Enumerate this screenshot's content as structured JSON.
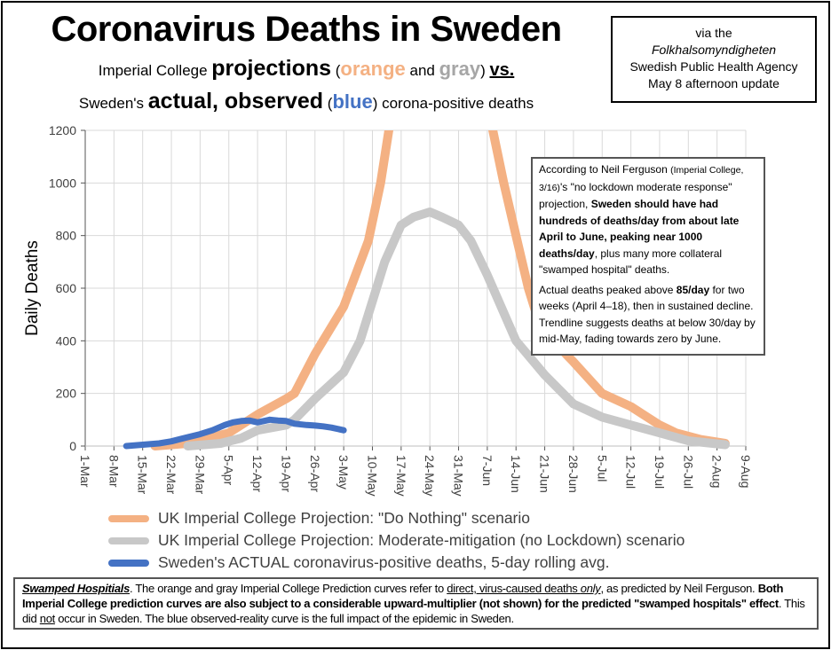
{
  "header": {
    "title": "Coronavirus Deaths in Sweden",
    "sub1_a": "Imperial College ",
    "sub1_b": "projections",
    "sub1_c": " (",
    "sub1_orange": "orange",
    "sub1_and": " and ",
    "sub1_gray": "gray",
    "sub1_d": ") ",
    "sub1_vs": "vs.",
    "sub2_a": "Sweden's ",
    "sub2_b": "actual, observed",
    "sub2_c": " (",
    "sub2_blue": "blue",
    "sub2_d": ") corona-positive deaths"
  },
  "source_box": {
    "line1": "via the",
    "line2": "Folkhalsomyndigheten",
    "line3": "Swedish Public Health Agency",
    "line4": "May 8 afternoon update"
  },
  "annotation": {
    "p1_a": "According to Neil Ferguson ",
    "p1_b": "(Imperial College, 3/16)",
    "p1_c": "'s \"no lockdown moderate response\" projection, ",
    "p1_bold": "Sweden should have had hundreds of deaths/day from about late April to June, peaking near 1000 deaths/day",
    "p1_d": ", plus many more collateral \"swamped hospital\" deaths.",
    "p2_a": "Actual deaths peaked above ",
    "p2_bold": "85/day",
    "p2_b": " for two weeks (April 4–18), then in sustained decline. Trendline suggests deaths at below 30/day by mid-May, fading towards zero by June."
  },
  "chart_data": {
    "type": "line",
    "title": "",
    "xlabel": "",
    "ylabel": "Daily Deaths",
    "ylim": [
      0,
      1200
    ],
    "yticks": [
      "0",
      "200",
      "400",
      "600",
      "800",
      "1000",
      "1200"
    ],
    "xticks": [
      "1-Mar",
      "8-Mar",
      "15-Mar",
      "22-Mar",
      "29-Mar",
      "5-Apr",
      "12-Apr",
      "19-Apr",
      "26-Apr",
      "3-May",
      "10-May",
      "17-May",
      "24-May",
      "31-May",
      "7-Jun",
      "14-Jun",
      "21-Jun",
      "28-Jun",
      "5-Jul",
      "12-Jul",
      "19-Jul",
      "26-Jul",
      "2-Aug",
      "9-Aug"
    ],
    "grid": true,
    "legend_position": "bottom",
    "series": [
      {
        "name": "UK Imperial College Projection: \"Do Nothing\" scenario",
        "color": "#f4b183",
        "x": [
          "18-Mar",
          "26-Mar",
          "5-Apr",
          "12-Apr",
          "19-Apr",
          "21-Apr",
          "26-Apr",
          "3-May",
          "9-May",
          "12-May",
          "15-May",
          "19-May",
          "7-Jun",
          "11-Jun",
          "14-Jun",
          "17-Jun",
          "20-Jun",
          "28-Jun",
          "5-Jul",
          "12-Jul",
          "16-Jul",
          "19-Jul",
          "23-Jul",
          "29-Jul",
          "4-Aug"
        ],
        "y": [
          0,
          10,
          50,
          120,
          180,
          200,
          350,
          530,
          780,
          1000,
          1300,
          2000,
          1300,
          1000,
          800,
          600,
          450,
          320,
          200,
          150,
          110,
          80,
          50,
          25,
          10
        ]
      },
      {
        "name": "UK Imperial College Projection: Moderate-mitigation (no Lockdown) scenario",
        "color": "#c8c8c8",
        "x": [
          "26-Mar",
          "3-Apr",
          "8-Apr",
          "12-Apr",
          "19-Apr",
          "21-Apr",
          "26-Apr",
          "3-May",
          "7-May",
          "10-May",
          "13-May",
          "17-May",
          "20-May",
          "24-May",
          "27-May",
          "31-May",
          "3-Jun",
          "7-Jun",
          "14-Jun",
          "21-Jun",
          "28-Jun",
          "5-Jul",
          "12-Jul",
          "19-Jul",
          "26-Jul",
          "4-Aug"
        ],
        "y": [
          0,
          10,
          30,
          60,
          80,
          100,
          180,
          280,
          400,
          550,
          700,
          840,
          870,
          890,
          870,
          840,
          780,
          650,
          400,
          270,
          160,
          110,
          80,
          50,
          20,
          5
        ]
      },
      {
        "name": "Sweden's ACTUAL coronavirus-positive deaths, 5-day rolling avg.",
        "color": "#4472c4",
        "x": [
          "11-Mar",
          "15-Mar",
          "19-Mar",
          "22-Mar",
          "25-Mar",
          "29-Mar",
          "1-Apr",
          "4-Apr",
          "6-Apr",
          "8-Apr",
          "10-Apr",
          "12-Apr",
          "15-Apr",
          "17-Apr",
          "19-Apr",
          "21-Apr",
          "24-Apr",
          "26-Apr",
          "28-Apr",
          "30-Apr",
          "3-May"
        ],
        "y": [
          0,
          5,
          10,
          18,
          30,
          45,
          60,
          80,
          90,
          95,
          97,
          90,
          100,
          97,
          95,
          85,
          80,
          78,
          75,
          70,
          60
        ]
      }
    ]
  },
  "footnote": {
    "a": "Swamped Hospitials",
    "b": ". The orange and gray Imperial College Prediction curves refer to ",
    "c": "direct, virus-caused deaths ",
    "d": "only",
    "e": ", as predicted by Neil Ferguson. ",
    "f": "Both Imperial College prediction curves are also subject to a considerable upward-multiplier (not shown) for the predicted \"swamped hospitals\" effect",
    "g": ". This did ",
    "h": "not",
    "i": " occur in Sweden. The blue observed-reality curve is the full impact of the epidemic in Sweden."
  }
}
